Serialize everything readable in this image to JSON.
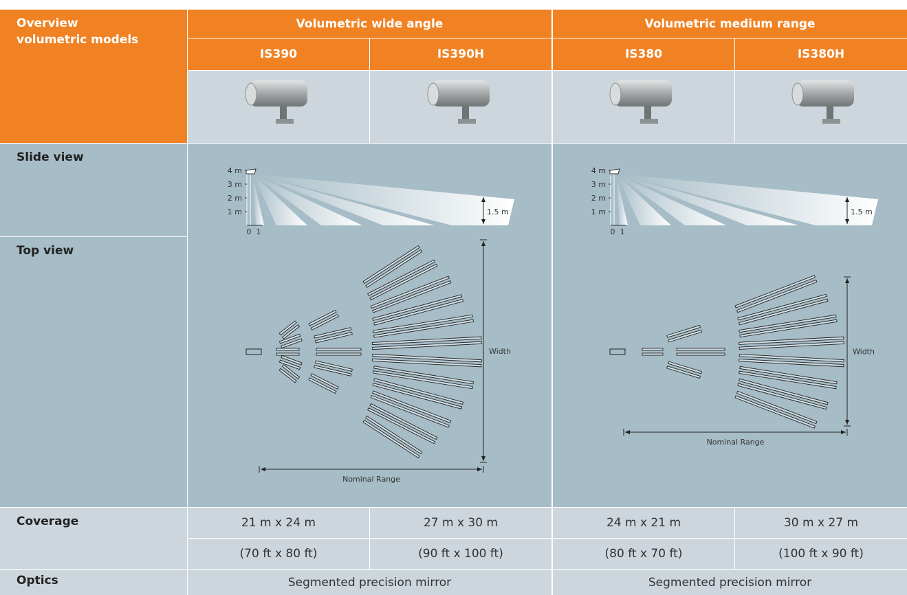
{
  "header": {
    "title": "Overview volumetric models",
    "groups": [
      "Volumetric wide angle",
      "Volumetric medium range"
    ],
    "models": [
      "IS390",
      "IS390H",
      "IS380",
      "IS380H"
    ]
  },
  "diagrams": {
    "rows": [
      "Slide view",
      "Top view"
    ],
    "height_labels": [
      "4 m",
      "3 m",
      "2 m",
      "1 m"
    ],
    "distance_labels": [
      "0",
      "1"
    ],
    "target_height": "1.5 m",
    "width_label": "Width",
    "range_label": "Nominal Range"
  },
  "coverage": {
    "label": "Coverage",
    "metric": [
      "21 m x 24 m",
      "27 m x 30 m",
      "24 m x 21 m",
      "30 m x 27 m"
    ],
    "imperial": [
      "(70 ft x 80 ft)",
      "(90 ft x 100 ft)",
      "(80 ft x 70 ft)",
      "(100 ft x 90 ft)"
    ]
  },
  "optics": {
    "label": "Optics",
    "values": [
      "Segmented precision mirror",
      "Segmented precision mirror"
    ]
  }
}
